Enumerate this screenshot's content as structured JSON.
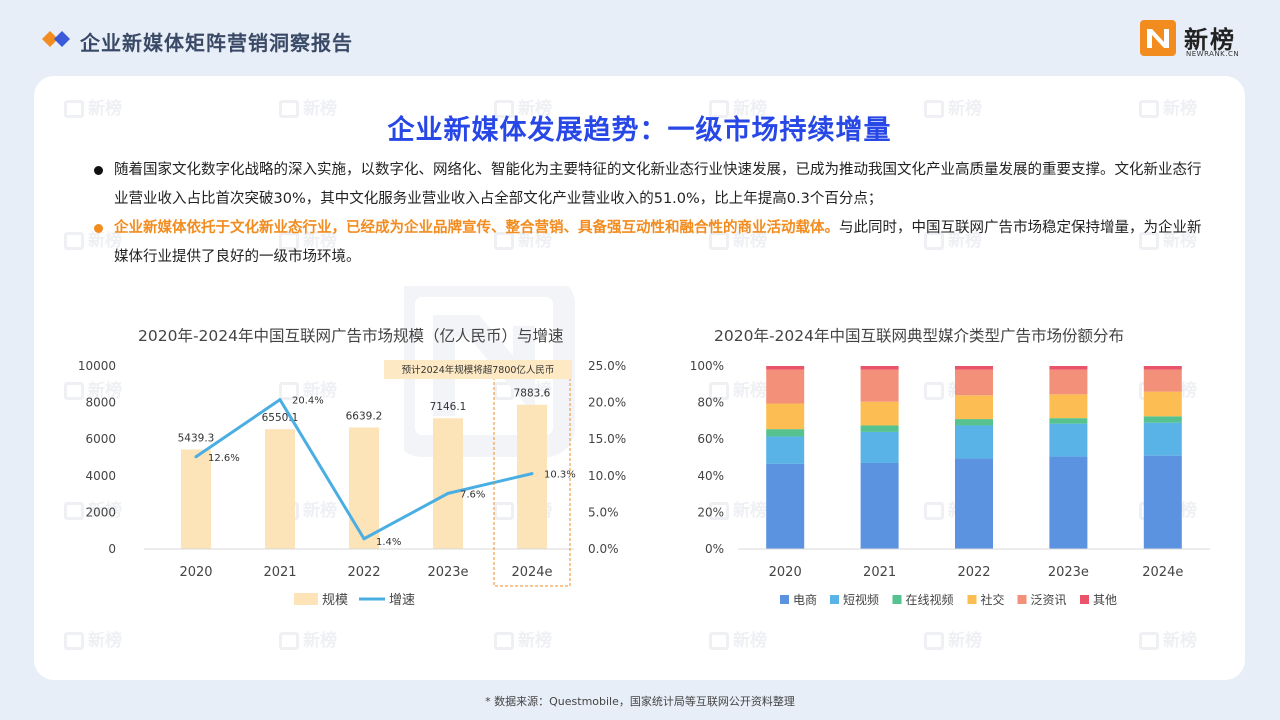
{
  "header": {
    "report_title": "企业新媒体矩阵营销洞察报告",
    "logo_cn": "新榜",
    "logo_en": "NEWRANK.CN"
  },
  "colors": {
    "title_blue": "#2747e6",
    "orange": "#f28c1f",
    "bar_fill": "#fde3b8",
    "line": "#4aaee2"
  },
  "main_title": "企业新媒体发展趋势：一级市场持续增量",
  "bullets": [
    {
      "text": "随着国家文化数字化战略的深入实施，以数字化、网络化、智能化为主要特征的文化新业态行业快速发展，已成为推动我国文化产业高质量发展的重要支撑。文化新业态行业营业收入占比首次突破30%，其中文化服务业营业收入占全部文化产业营业收入的51.0%，比上年提高0.3个百分点；"
    },
    {
      "highlight": "企业新媒体依托于文化新业态行业，已经成为企业品牌宣传、整合营销、具备强互动性和融合性的商业活动载体。",
      "text": "与此同时，中国互联网广告市场稳定保持增量，为企业新媒体行业提供了良好的一级市场环境。"
    }
  ],
  "watermark": "新榜",
  "source_note": "* 数据来源：Questmobile，国家统计局等互联网公开资料整理",
  "chart_data": [
    {
      "type": "bar",
      "title": "2020年-2024年中国互联网广告市场规模（亿人民币）与增速",
      "categories": [
        "2020",
        "2021",
        "2022",
        "2023e",
        "2024e"
      ],
      "series": [
        {
          "name": "规模",
          "type": "bar",
          "values": [
            5439.3,
            6550.1,
            6639.2,
            7146.1,
            7883.6
          ],
          "labels": [
            "5439.3",
            "6550.1",
            "6639.2",
            "7146.1",
            "7883.6"
          ]
        },
        {
          "name": "增速",
          "type": "line",
          "values": [
            12.6,
            20.4,
            1.4,
            7.6,
            10.3
          ],
          "labels": [
            "12.6%",
            "20.4%",
            "1.4%",
            "7.6%",
            "10.3%"
          ]
        }
      ],
      "y_left": {
        "range": [
          0,
          10000
        ],
        "ticks": [
          "0",
          "2000",
          "4000",
          "6000",
          "8000",
          "10000"
        ]
      },
      "y_right": {
        "range": [
          0,
          25
        ],
        "ticks": [
          "0.0%",
          "5.0%",
          "10.0%",
          "15.0%",
          "20.0%",
          "25.0%"
        ]
      },
      "annotation": "预计2024年规模将超7800亿人民币",
      "legend_position": "bottom"
    },
    {
      "type": "bar",
      "stacked": true,
      "title": "2020年-2024年中国互联网典型媒介类型广告市场份额分布",
      "categories": [
        "2020",
        "2021",
        "2022",
        "2023e",
        "2024e"
      ],
      "y_range": [
        0,
        100
      ],
      "y_ticks": [
        "0%",
        "20%",
        "40%",
        "60%",
        "80%",
        "100%"
      ],
      "series": [
        {
          "name": "电商",
          "color": "#5b93e1",
          "values": [
            46.5,
            47,
            49.5,
            50.5,
            51
          ]
        },
        {
          "name": "短视频",
          "color": "#5ab3e6",
          "values": [
            15,
            17,
            18,
            18,
            18
          ]
        },
        {
          "name": "在线视频",
          "color": "#55c290",
          "values": [
            4,
            3.5,
            3.5,
            3,
            3.5
          ]
        },
        {
          "name": "社交",
          "color": "#fcbe52",
          "values": [
            14,
            13,
            13,
            13,
            13.5
          ]
        },
        {
          "name": "泛资讯",
          "color": "#f3907a",
          "values": [
            18.5,
            17.5,
            14,
            13.5,
            12
          ]
        },
        {
          "name": "其他",
          "color": "#e9546b",
          "values": [
            2,
            2,
            2,
            2,
            2
          ]
        }
      ],
      "legend_position": "bottom"
    }
  ]
}
